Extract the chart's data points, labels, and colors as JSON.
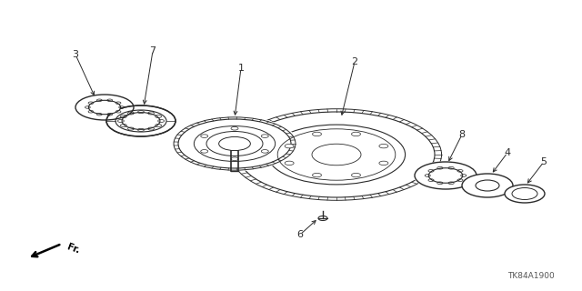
{
  "bg_color": "#ffffff",
  "lc": "#2a2a2a",
  "watermark": "TK84A1900",
  "fig_w": 6.4,
  "fig_h": 3.2,
  "dpi": 100
}
